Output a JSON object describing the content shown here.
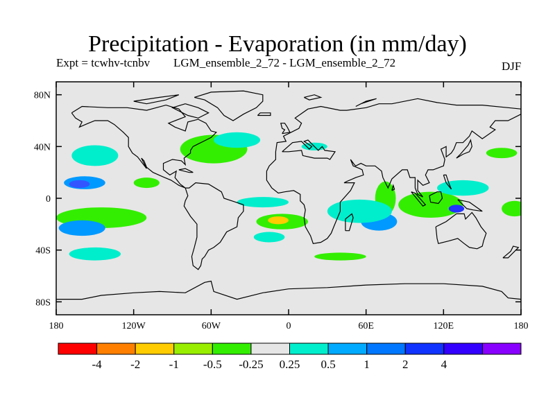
{
  "title": "Precipitation - Evaporation (in mm/day)",
  "subtitle_left": "Expt = tcwhv-tcnbv",
  "subtitle_mid": "LGM_ensemble_2_72 - LGM_ensemble_2_72",
  "season": "DJF",
  "map": {
    "projection": "cylindrical-equidistant",
    "lon_range": [
      -180,
      180
    ],
    "lat_range": [
      -90,
      90
    ],
    "ocean_fill": "#e6e6e6",
    "coastline_color": "#000000",
    "lat_ticks": [
      {
        "lat": 80,
        "label": "80N"
      },
      {
        "lat": 40,
        "label": "40N"
      },
      {
        "lat": 0,
        "label": "0"
      },
      {
        "lat": -40,
        "label": "40S"
      },
      {
        "lat": -80,
        "label": "80S"
      }
    ],
    "lon_ticks": [
      {
        "lon": -180,
        "label": "180"
      },
      {
        "lon": -120,
        "label": "120W"
      },
      {
        "lon": -60,
        "label": "60W"
      },
      {
        "lon": 0,
        "label": "0"
      },
      {
        "lon": 60,
        "label": "60E"
      },
      {
        "lon": 120,
        "label": "120E"
      },
      {
        "lon": 180,
        "label": "180"
      }
    ],
    "anomaly_regions": [
      {
        "name": "north-atlantic-drying",
        "lon": -60,
        "lat": 37,
        "rx_deg": 10,
        "ry_deg": 6,
        "color": "#ff9900",
        "label": "-2"
      },
      {
        "name": "north-atlantic-yellow",
        "lon": -62,
        "lat": 38,
        "rx_deg": 18,
        "ry_deg": 9,
        "color": "#ffcc00",
        "label": "-1"
      },
      {
        "name": "north-atlantic-green",
        "lon": -58,
        "lat": 38,
        "rx_deg": 26,
        "ry_deg": 11,
        "color": "#33ee00",
        "label": "-0.5"
      },
      {
        "name": "north-atlantic-cyan",
        "lon": -40,
        "lat": 45,
        "rx_deg": 18,
        "ry_deg": 6,
        "color": "#00eecc",
        "label": "0.25"
      },
      {
        "name": "north-pacific-cyan",
        "lon": -150,
        "lat": 33,
        "rx_deg": 18,
        "ry_deg": 8,
        "color": "#00eecc",
        "label": "0.25"
      },
      {
        "name": "tropical-pacific-blue",
        "lon": -158,
        "lat": 12,
        "rx_deg": 16,
        "ry_deg": 5,
        "color": "#0099ff",
        "label": "0.5"
      },
      {
        "name": "tropical-pacific-dark",
        "lon": -162,
        "lat": 11,
        "rx_deg": 8,
        "ry_deg": 3,
        "color": "#3355ff",
        "label": "1"
      },
      {
        "name": "south-pacific-green",
        "lon": -145,
        "lat": -15,
        "rx_deg": 35,
        "ry_deg": 8,
        "color": "#33ee00",
        "label": "-0.5"
      },
      {
        "name": "south-pacific-blue",
        "lon": -160,
        "lat": -23,
        "rx_deg": 18,
        "ry_deg": 6,
        "color": "#0099ff",
        "label": "0.5"
      },
      {
        "name": "south-pacific-cyan",
        "lon": -150,
        "lat": -43,
        "rx_deg": 20,
        "ry_deg": 5,
        "color": "#00eecc",
        "label": "0.25"
      },
      {
        "name": "south-atlantic-green",
        "lon": -5,
        "lat": -18,
        "rx_deg": 20,
        "ry_deg": 6,
        "color": "#33ee00",
        "label": "-0.5"
      },
      {
        "name": "south-atlantic-yellow",
        "lon": -8,
        "lat": -17,
        "rx_deg": 8,
        "ry_deg": 3,
        "color": "#ffcc00",
        "label": "-1"
      },
      {
        "name": "south-atlantic-cyan",
        "lon": -15,
        "lat": -30,
        "rx_deg": 12,
        "ry_deg": 4,
        "color": "#00eecc",
        "label": "0.25"
      },
      {
        "name": "equatorial-atlantic-cyan",
        "lon": -20,
        "lat": -3,
        "rx_deg": 20,
        "ry_deg": 4,
        "color": "#00eecc",
        "label": "0.25"
      },
      {
        "name": "southern-ocean-green",
        "lon": 40,
        "lat": -45,
        "rx_deg": 20,
        "ry_deg": 3,
        "color": "#33ee00",
        "label": "-0.5"
      },
      {
        "name": "indian-ocean-green",
        "lon": 75,
        "lat": 0,
        "rx_deg": 8,
        "ry_deg": 13,
        "color": "#33ee00",
        "label": "-0.5"
      },
      {
        "name": "indian-ocean-blue",
        "lon": 70,
        "lat": -18,
        "rx_deg": 14,
        "ry_deg": 7,
        "color": "#0099ff",
        "label": "0.5"
      },
      {
        "name": "indian-ocean-cyan",
        "lon": 55,
        "lat": -10,
        "rx_deg": 25,
        "ry_deg": 9,
        "color": "#00eecc",
        "label": "0.25"
      },
      {
        "name": "maritime-continent-green",
        "lon": 110,
        "lat": -5,
        "rx_deg": 25,
        "ry_deg": 10,
        "color": "#33ee00",
        "label": "-0.5"
      },
      {
        "name": "maritime-continent-cyan",
        "lon": 135,
        "lat": 8,
        "rx_deg": 20,
        "ry_deg": 6,
        "color": "#00eecc",
        "label": "0.25"
      },
      {
        "name": "maritime-continent-dark",
        "lon": 130,
        "lat": -8,
        "rx_deg": 6,
        "ry_deg": 3,
        "color": "#2233ff",
        "label": "2"
      },
      {
        "name": "western-pacific-green",
        "lon": 175,
        "lat": -8,
        "rx_deg": 10,
        "ry_deg": 6,
        "color": "#33ee00",
        "label": "-0.5"
      },
      {
        "name": "mediterranean-cyan",
        "lon": 20,
        "lat": 40,
        "rx_deg": 10,
        "ry_deg": 3,
        "color": "#00eecc",
        "label": "0.25"
      },
      {
        "name": "north-pacific-west-green",
        "lon": 165,
        "lat": 35,
        "rx_deg": 12,
        "ry_deg": 4,
        "color": "#33ee00",
        "label": "-0.5"
      },
      {
        "name": "eastern-pacific-green",
        "lon": -110,
        "lat": 12,
        "rx_deg": 10,
        "ry_deg": 4,
        "color": "#33ee00",
        "label": "-0.5"
      }
    ]
  },
  "colorbar": {
    "colors": [
      "#ff0000",
      "#ff8000",
      "#ffcc00",
      "#99ee00",
      "#33ee00",
      "#e6e6e6",
      "#00eecc",
      "#00aaff",
      "#0077ff",
      "#1133ff",
      "#3300ff",
      "#8800ff"
    ],
    "labels": [
      "-4",
      "-2",
      "-1",
      "-0.5",
      "-0.25",
      "0.25",
      "0.5",
      "1",
      "2",
      "4"
    ]
  }
}
